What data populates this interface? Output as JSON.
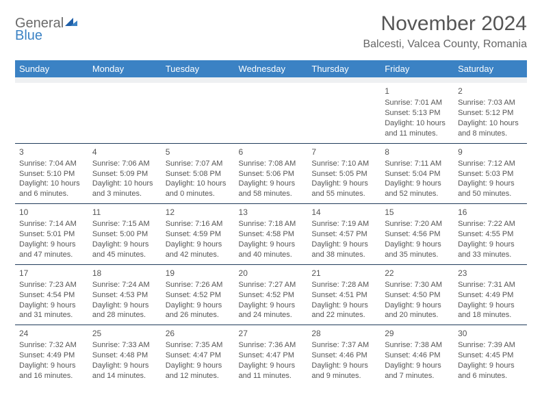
{
  "logo": {
    "line1": "General",
    "line2": "Blue"
  },
  "title": "November 2024",
  "location": "Balcesti, Valcea County, Romania",
  "colors": {
    "header_bg": "#3b82c4",
    "header_fg": "#ffffff",
    "spacer_bg": "#eef0f2",
    "cell_border": "#1f3a5a",
    "text": "#555555",
    "logo_gray": "#6a6a6a",
    "logo_blue": "#3b82c4"
  },
  "weekdays": [
    "Sunday",
    "Monday",
    "Tuesday",
    "Wednesday",
    "Thursday",
    "Friday",
    "Saturday"
  ],
  "weeks": [
    [
      null,
      null,
      null,
      null,
      null,
      {
        "day": "1",
        "sunrise": "Sunrise: 7:01 AM",
        "sunset": "Sunset: 5:13 PM",
        "daylight": "Daylight: 10 hours and 11 minutes."
      },
      {
        "day": "2",
        "sunrise": "Sunrise: 7:03 AM",
        "sunset": "Sunset: 5:12 PM",
        "daylight": "Daylight: 10 hours and 8 minutes."
      }
    ],
    [
      {
        "day": "3",
        "sunrise": "Sunrise: 7:04 AM",
        "sunset": "Sunset: 5:10 PM",
        "daylight": "Daylight: 10 hours and 6 minutes."
      },
      {
        "day": "4",
        "sunrise": "Sunrise: 7:06 AM",
        "sunset": "Sunset: 5:09 PM",
        "daylight": "Daylight: 10 hours and 3 minutes."
      },
      {
        "day": "5",
        "sunrise": "Sunrise: 7:07 AM",
        "sunset": "Sunset: 5:08 PM",
        "daylight": "Daylight: 10 hours and 0 minutes."
      },
      {
        "day": "6",
        "sunrise": "Sunrise: 7:08 AM",
        "sunset": "Sunset: 5:06 PM",
        "daylight": "Daylight: 9 hours and 58 minutes."
      },
      {
        "day": "7",
        "sunrise": "Sunrise: 7:10 AM",
        "sunset": "Sunset: 5:05 PM",
        "daylight": "Daylight: 9 hours and 55 minutes."
      },
      {
        "day": "8",
        "sunrise": "Sunrise: 7:11 AM",
        "sunset": "Sunset: 5:04 PM",
        "daylight": "Daylight: 9 hours and 52 minutes."
      },
      {
        "day": "9",
        "sunrise": "Sunrise: 7:12 AM",
        "sunset": "Sunset: 5:03 PM",
        "daylight": "Daylight: 9 hours and 50 minutes."
      }
    ],
    [
      {
        "day": "10",
        "sunrise": "Sunrise: 7:14 AM",
        "sunset": "Sunset: 5:01 PM",
        "daylight": "Daylight: 9 hours and 47 minutes."
      },
      {
        "day": "11",
        "sunrise": "Sunrise: 7:15 AM",
        "sunset": "Sunset: 5:00 PM",
        "daylight": "Daylight: 9 hours and 45 minutes."
      },
      {
        "day": "12",
        "sunrise": "Sunrise: 7:16 AM",
        "sunset": "Sunset: 4:59 PM",
        "daylight": "Daylight: 9 hours and 42 minutes."
      },
      {
        "day": "13",
        "sunrise": "Sunrise: 7:18 AM",
        "sunset": "Sunset: 4:58 PM",
        "daylight": "Daylight: 9 hours and 40 minutes."
      },
      {
        "day": "14",
        "sunrise": "Sunrise: 7:19 AM",
        "sunset": "Sunset: 4:57 PM",
        "daylight": "Daylight: 9 hours and 38 minutes."
      },
      {
        "day": "15",
        "sunrise": "Sunrise: 7:20 AM",
        "sunset": "Sunset: 4:56 PM",
        "daylight": "Daylight: 9 hours and 35 minutes."
      },
      {
        "day": "16",
        "sunrise": "Sunrise: 7:22 AM",
        "sunset": "Sunset: 4:55 PM",
        "daylight": "Daylight: 9 hours and 33 minutes."
      }
    ],
    [
      {
        "day": "17",
        "sunrise": "Sunrise: 7:23 AM",
        "sunset": "Sunset: 4:54 PM",
        "daylight": "Daylight: 9 hours and 31 minutes."
      },
      {
        "day": "18",
        "sunrise": "Sunrise: 7:24 AM",
        "sunset": "Sunset: 4:53 PM",
        "daylight": "Daylight: 9 hours and 28 minutes."
      },
      {
        "day": "19",
        "sunrise": "Sunrise: 7:26 AM",
        "sunset": "Sunset: 4:52 PM",
        "daylight": "Daylight: 9 hours and 26 minutes."
      },
      {
        "day": "20",
        "sunrise": "Sunrise: 7:27 AM",
        "sunset": "Sunset: 4:52 PM",
        "daylight": "Daylight: 9 hours and 24 minutes."
      },
      {
        "day": "21",
        "sunrise": "Sunrise: 7:28 AM",
        "sunset": "Sunset: 4:51 PM",
        "daylight": "Daylight: 9 hours and 22 minutes."
      },
      {
        "day": "22",
        "sunrise": "Sunrise: 7:30 AM",
        "sunset": "Sunset: 4:50 PM",
        "daylight": "Daylight: 9 hours and 20 minutes."
      },
      {
        "day": "23",
        "sunrise": "Sunrise: 7:31 AM",
        "sunset": "Sunset: 4:49 PM",
        "daylight": "Daylight: 9 hours and 18 minutes."
      }
    ],
    [
      {
        "day": "24",
        "sunrise": "Sunrise: 7:32 AM",
        "sunset": "Sunset: 4:49 PM",
        "daylight": "Daylight: 9 hours and 16 minutes."
      },
      {
        "day": "25",
        "sunrise": "Sunrise: 7:33 AM",
        "sunset": "Sunset: 4:48 PM",
        "daylight": "Daylight: 9 hours and 14 minutes."
      },
      {
        "day": "26",
        "sunrise": "Sunrise: 7:35 AM",
        "sunset": "Sunset: 4:47 PM",
        "daylight": "Daylight: 9 hours and 12 minutes."
      },
      {
        "day": "27",
        "sunrise": "Sunrise: 7:36 AM",
        "sunset": "Sunset: 4:47 PM",
        "daylight": "Daylight: 9 hours and 11 minutes."
      },
      {
        "day": "28",
        "sunrise": "Sunrise: 7:37 AM",
        "sunset": "Sunset: 4:46 PM",
        "daylight": "Daylight: 9 hours and 9 minutes."
      },
      {
        "day": "29",
        "sunrise": "Sunrise: 7:38 AM",
        "sunset": "Sunset: 4:46 PM",
        "daylight": "Daylight: 9 hours and 7 minutes."
      },
      {
        "day": "30",
        "sunrise": "Sunrise: 7:39 AM",
        "sunset": "Sunset: 4:45 PM",
        "daylight": "Daylight: 9 hours and 6 minutes."
      }
    ]
  ]
}
